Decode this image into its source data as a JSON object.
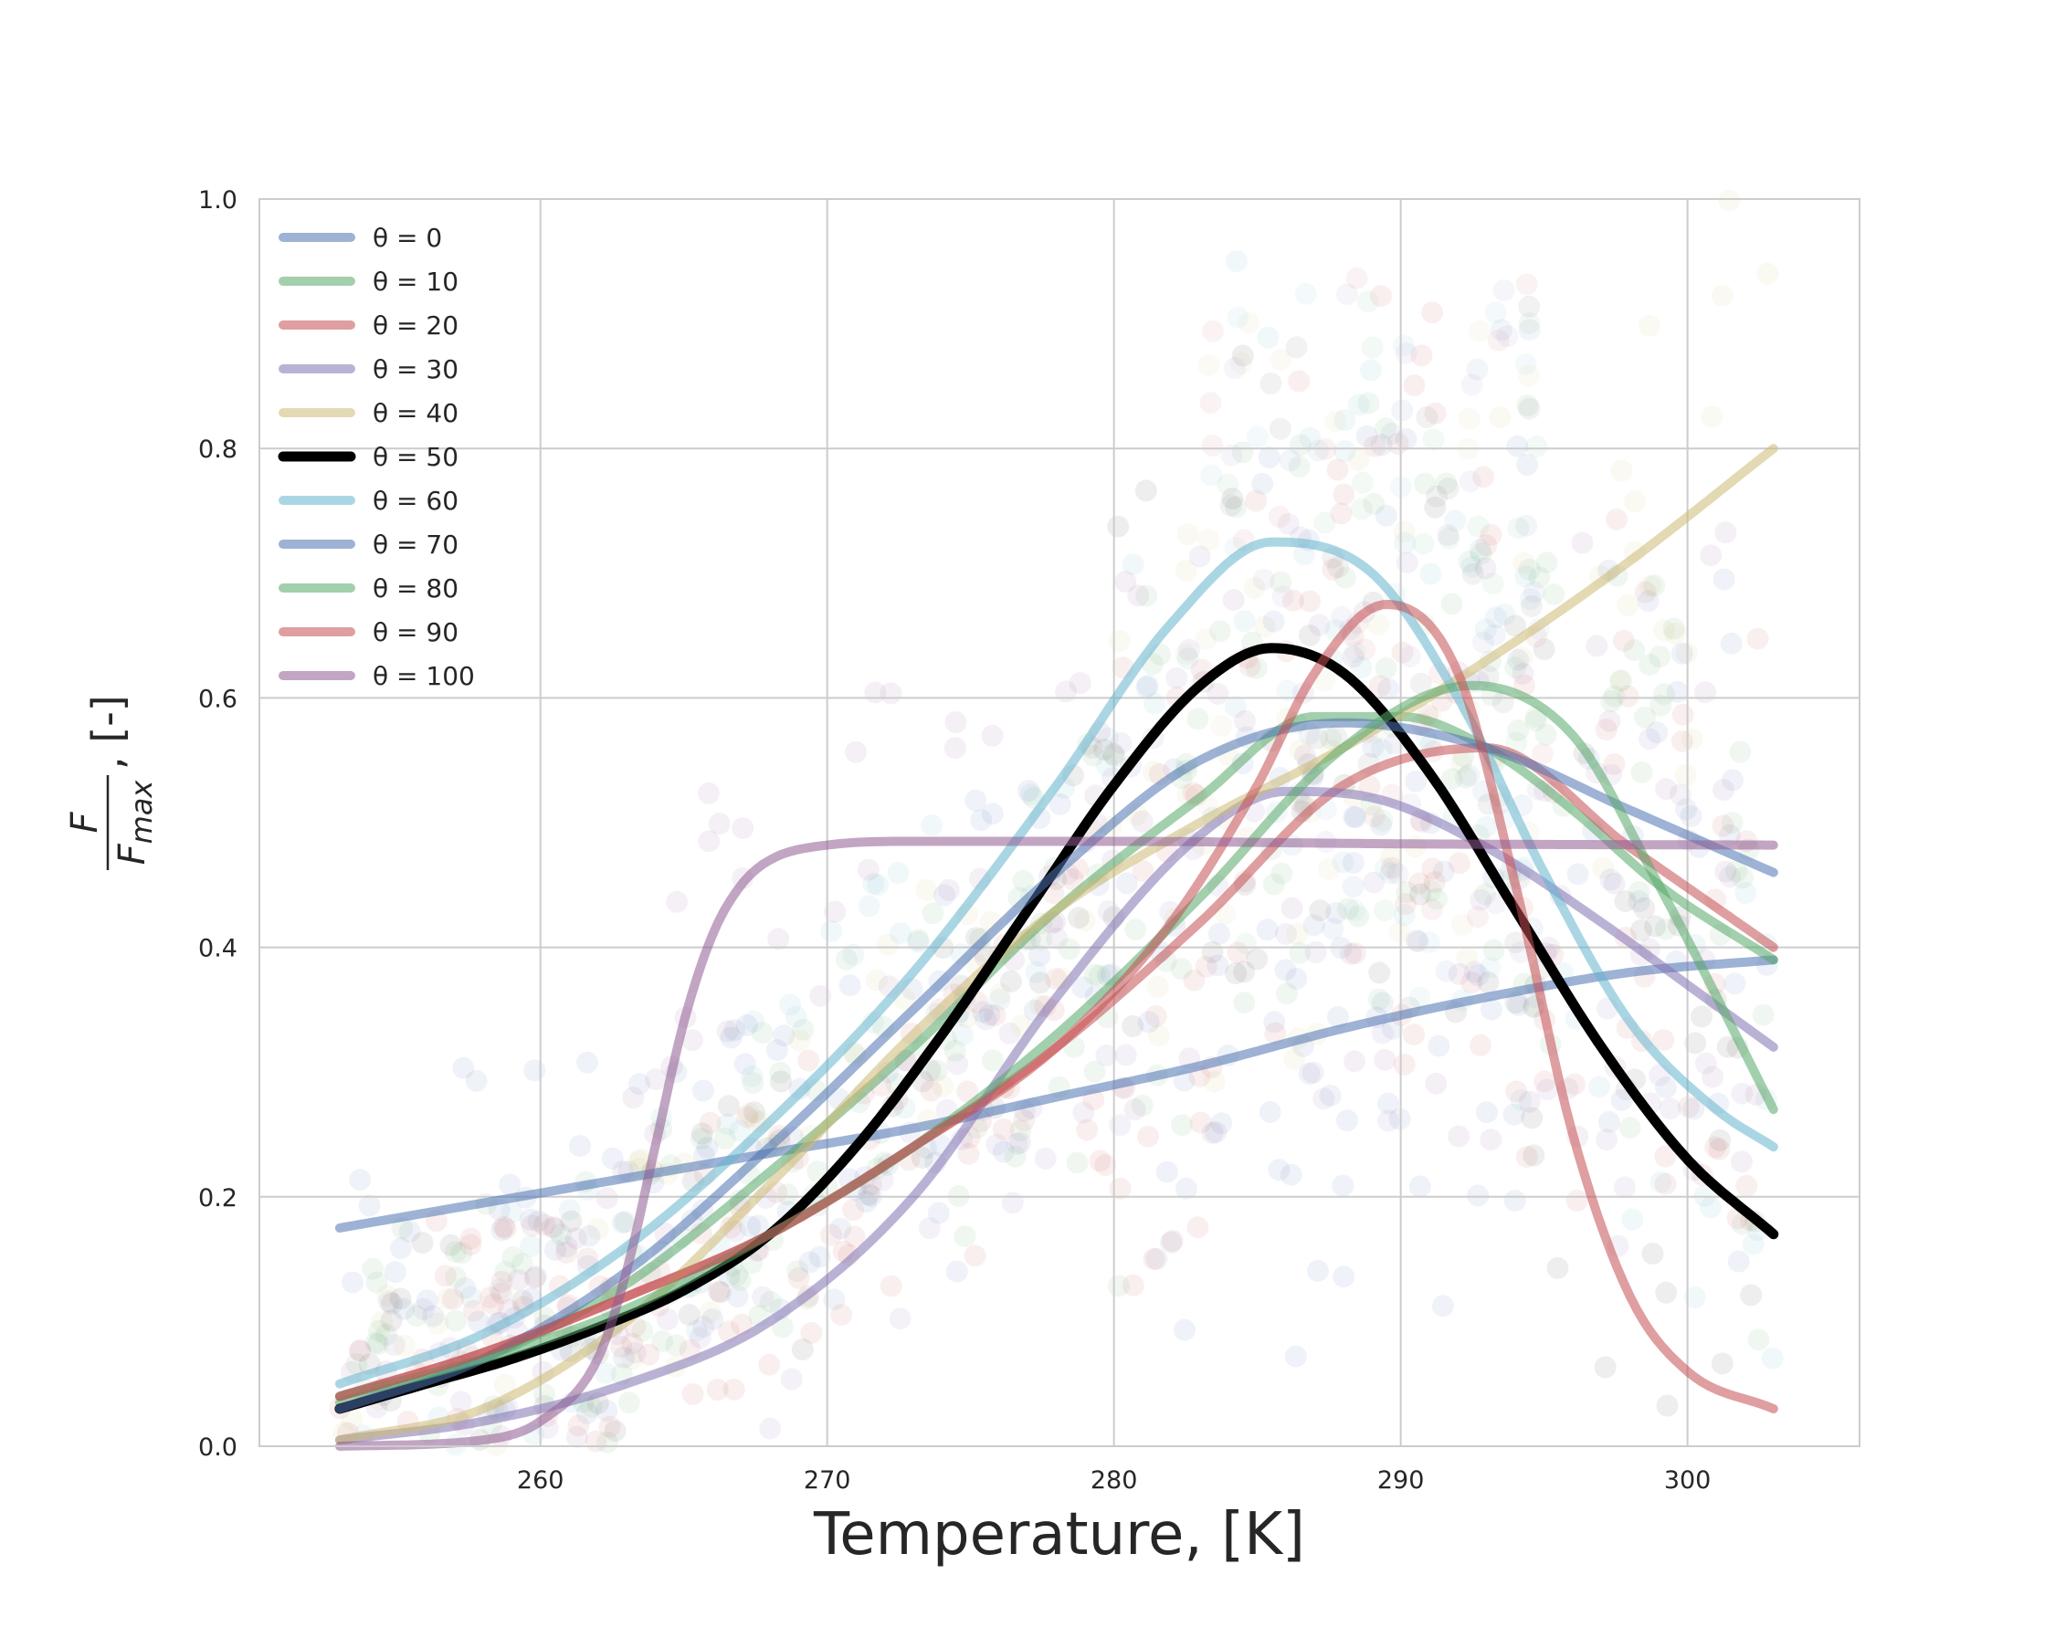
{
  "chart_data": {
    "type": "line",
    "xlabel": "Temperature, [K]",
    "ylabel": {
      "numerator": "F",
      "denominator": "F",
      "denominator_sub": "max",
      "suffix": ", [-]"
    },
    "xlim": [
      250.2,
      306
    ],
    "ylim": [
      0,
      1
    ],
    "xticks": [
      260,
      270,
      280,
      290,
      300
    ],
    "yticks": [
      0.0,
      0.2,
      0.4,
      0.6,
      0.8,
      1.0
    ],
    "grid": true,
    "legend_position": "top-left",
    "background": "#ffffff",
    "grid_color": "#cccccc",
    "series": [
      {
        "name": "θ = 0",
        "color": "#4C72B0",
        "x": [
          253,
          258,
          263,
          268,
          273,
          278,
          283,
          288,
          293,
          298,
          303
        ],
        "y": [
          0.175,
          0.195,
          0.215,
          0.235,
          0.255,
          0.28,
          0.305,
          0.335,
          0.36,
          0.38,
          0.39
        ]
      },
      {
        "name": "θ = 10",
        "color": "#55A868",
        "x": [
          253,
          258,
          263,
          268,
          273,
          278,
          283,
          287,
          290,
          293,
          296,
          299,
          303
        ],
        "y": [
          0.035,
          0.07,
          0.13,
          0.22,
          0.32,
          0.43,
          0.52,
          0.585,
          0.585,
          0.56,
          0.51,
          0.45,
          0.39
        ]
      },
      {
        "name": "θ = 20",
        "color": "#C44E52",
        "x": [
          253,
          258,
          263,
          268,
          273,
          278,
          283,
          288,
          293,
          298,
          303
        ],
        "y": [
          0.04,
          0.075,
          0.12,
          0.17,
          0.24,
          0.32,
          0.42,
          0.53,
          0.56,
          0.48,
          0.4
        ]
      },
      {
        "name": "θ = 30",
        "color": "#8172B2",
        "x": [
          253,
          258,
          263,
          268,
          273,
          278,
          283,
          286,
          289,
          293,
          297,
          300,
          303
        ],
        "y": [
          0.005,
          0.02,
          0.05,
          0.1,
          0.2,
          0.36,
          0.49,
          0.525,
          0.52,
          0.48,
          0.42,
          0.37,
          0.32
        ]
      },
      {
        "name": "θ = 40",
        "color": "#CCB974",
        "x": [
          253,
          258,
          263,
          268,
          273,
          278,
          283,
          288,
          293,
          298,
          303
        ],
        "y": [
          0.005,
          0.03,
          0.1,
          0.21,
          0.33,
          0.43,
          0.5,
          0.56,
          0.63,
          0.71,
          0.8
        ]
      },
      {
        "name": "θ = 50",
        "color": "#000000",
        "x": [
          253,
          256,
          259,
          262,
          265,
          268,
          271,
          274,
          277,
          280,
          283,
          285.5,
          288,
          291,
          294,
          297,
          300,
          303
        ],
        "y": [
          0.03,
          0.05,
          0.07,
          0.095,
          0.125,
          0.17,
          0.24,
          0.33,
          0.43,
          0.53,
          0.61,
          0.64,
          0.62,
          0.54,
          0.43,
          0.32,
          0.23,
          0.17
        ]
      },
      {
        "name": "θ = 60",
        "color": "#64B5CD",
        "x": [
          253,
          258,
          263,
          268,
          273,
          278,
          282,
          285.5,
          289,
          292,
          295,
          298,
          301,
          303
        ],
        "y": [
          0.05,
          0.09,
          0.16,
          0.26,
          0.38,
          0.53,
          0.66,
          0.725,
          0.7,
          0.6,
          0.46,
          0.34,
          0.27,
          0.24
        ]
      },
      {
        "name": "θ = 70",
        "color": "#4C72B0",
        "x": [
          253,
          258,
          263,
          268,
          273,
          278,
          283,
          288,
          293,
          298,
          303
        ],
        "y": [
          0.03,
          0.07,
          0.14,
          0.24,
          0.35,
          0.46,
          0.55,
          0.58,
          0.56,
          0.51,
          0.46
        ]
      },
      {
        "name": "θ = 80",
        "color": "#55A868",
        "x": [
          253,
          258,
          263,
          268,
          273,
          278,
          283,
          288,
          292.5,
          296,
          299,
          303
        ],
        "y": [
          0.04,
          0.07,
          0.11,
          0.17,
          0.24,
          0.33,
          0.44,
          0.56,
          0.61,
          0.57,
          0.45,
          0.27
        ]
      },
      {
        "name": "θ = 90",
        "color": "#C44E52",
        "x": [
          253,
          258,
          263,
          268,
          273,
          278,
          282,
          285,
          287,
          289.5,
          292,
          294,
          296,
          298,
          300,
          303
        ],
        "y": [
          0.04,
          0.075,
          0.12,
          0.17,
          0.24,
          0.32,
          0.42,
          0.53,
          0.62,
          0.675,
          0.62,
          0.45,
          0.25,
          0.12,
          0.06,
          0.03
        ]
      },
      {
        "name": "θ = 100",
        "color": "#8E5B92",
        "x": [
          253,
          258,
          260,
          262,
          263,
          264,
          265,
          266,
          267,
          268,
          270,
          273,
          280,
          290,
          303
        ],
        "y": [
          0.0,
          0.005,
          0.02,
          0.07,
          0.14,
          0.24,
          0.34,
          0.41,
          0.45,
          0.47,
          0.482,
          0.485,
          0.485,
          0.483,
          0.482
        ]
      }
    ]
  }
}
